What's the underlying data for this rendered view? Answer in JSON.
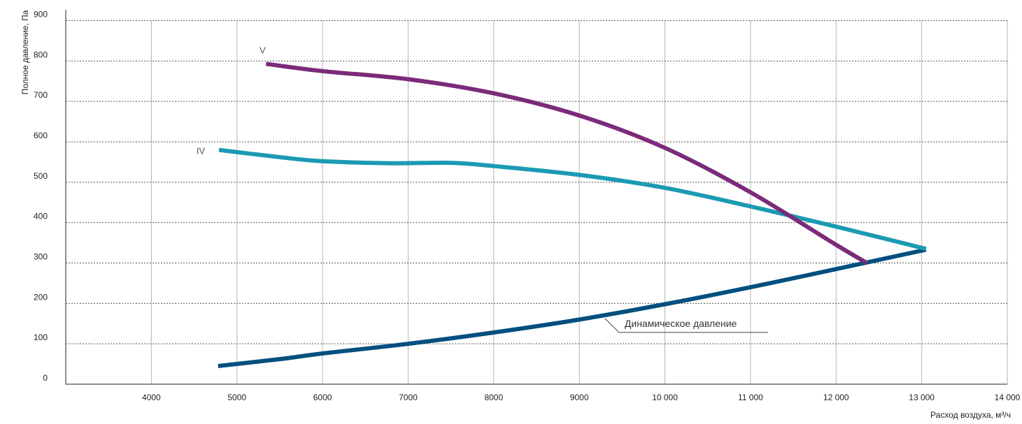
{
  "chart_data": {
    "type": "line",
    "xlabel": "Расход воздуха, м³/ч",
    "ylabel": "Полное давление, Па",
    "xlim": [
      3000,
      14000
    ],
    "ylim": [
      0,
      900
    ],
    "x_ticks": [
      {
        "value": 4000,
        "label": "4000"
      },
      {
        "value": 5000,
        "label": "5000"
      },
      {
        "value": 6000,
        "label": "6000"
      },
      {
        "value": 7000,
        "label": "7000"
      },
      {
        "value": 8000,
        "label": "8000"
      },
      {
        "value": 9000,
        "label": "9000"
      },
      {
        "value": 10000,
        "label": "10 000"
      },
      {
        "value": 11000,
        "label": "11 000"
      },
      {
        "value": 12000,
        "label": "12 000"
      },
      {
        "value": 13000,
        "label": "13 000"
      },
      {
        "value": 14000,
        "label": "14 000"
      }
    ],
    "y_ticks": [
      {
        "value": 0,
        "label": "0"
      },
      {
        "value": 100,
        "label": "100"
      },
      {
        "value": 200,
        "label": "200"
      },
      {
        "value": 300,
        "label": "300"
      },
      {
        "value": 400,
        "label": "400"
      },
      {
        "value": 500,
        "label": "500"
      },
      {
        "value": 600,
        "label": "600"
      },
      {
        "value": 700,
        "label": "700"
      },
      {
        "value": 800,
        "label": "800"
      },
      {
        "value": 900,
        "label": "900"
      }
    ],
    "grid": {
      "vertical": "solid",
      "horizontal": "dashed"
    },
    "series": [
      {
        "name": "V",
        "color": "#7b2b7a",
        "x": [
          5340,
          6000,
          7000,
          8000,
          9000,
          10000,
          11000,
          12000,
          12360
        ],
        "y": [
          793,
          775,
          755,
          720,
          665,
          585,
          475,
          345,
          300
        ]
      },
      {
        "name": "IV",
        "color": "#1b9ab3",
        "x": [
          4790,
          5500,
          6000,
          6800,
          7500,
          8000,
          9000,
          10000,
          11000,
          12000,
          13050
        ],
        "y": [
          580,
          562,
          552,
          547,
          548,
          540,
          518,
          486,
          440,
          390,
          335
        ]
      },
      {
        "name": "Динамическое давление",
        "color": "#004f7f",
        "x": [
          4780,
          5500,
          6000,
          7000,
          8000,
          9000,
          10000,
          11000,
          12000,
          13050
        ],
        "y": [
          45,
          62,
          76,
          100,
          128,
          160,
          198,
          240,
          285,
          333
        ]
      }
    ],
    "annotations": [
      {
        "text": "Динамическое давление",
        "target_series": 2,
        "at_x": 9300
      }
    ]
  }
}
